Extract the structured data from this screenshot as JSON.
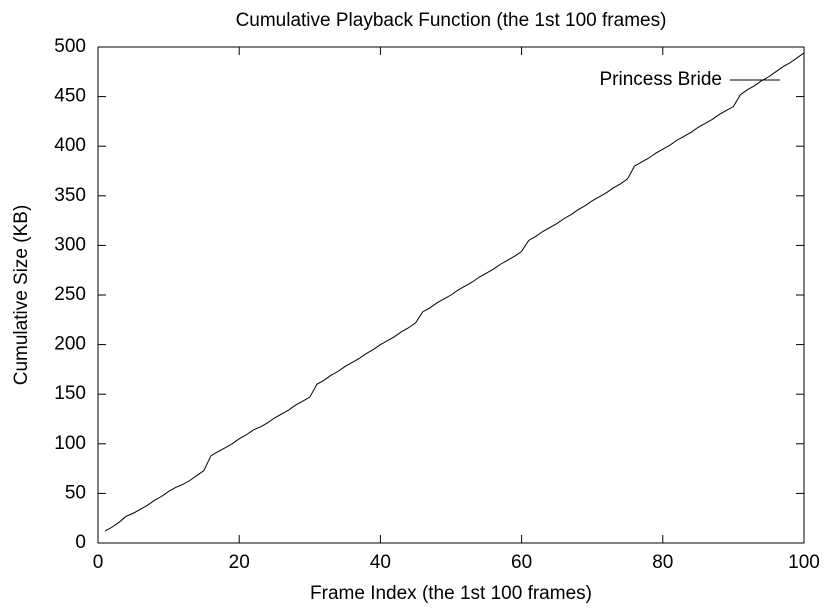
{
  "chart_data": {
    "type": "line",
    "title": "Cumulative Playback Function (the 1st 100 frames)",
    "x_label": "Frame Index (the 1st 100 frames)",
    "y_label": "Cumulative Size (KB)",
    "x": [
      1,
      2,
      3,
      4,
      5,
      6,
      7,
      8,
      9,
      10,
      11,
      12,
      13,
      14,
      15,
      16,
      17,
      18,
      19,
      20,
      21,
      22,
      23,
      24,
      25,
      26,
      27,
      28,
      29,
      30,
      31,
      32,
      33,
      34,
      35,
      36,
      37,
      38,
      39,
      40,
      41,
      42,
      43,
      44,
      45,
      46,
      47,
      48,
      49,
      50,
      51,
      52,
      53,
      54,
      55,
      56,
      57,
      58,
      59,
      60,
      61,
      62,
      63,
      64,
      65,
      66,
      67,
      68,
      69,
      70,
      71,
      72,
      73,
      74,
      75,
      76,
      77,
      78,
      79,
      80,
      81,
      82,
      83,
      84,
      85,
      86,
      87,
      88,
      89,
      90,
      91,
      92,
      93,
      94,
      95,
      96,
      97,
      98,
      99,
      100
    ],
    "series": [
      {
        "name": "Princess Bride",
        "color": "#000000",
        "values": [
          12,
          16,
          21,
          27,
          30,
          34,
          38,
          43,
          47,
          52,
          56,
          59,
          63,
          68,
          73,
          88,
          92,
          96,
          100,
          105,
          109,
          114,
          117,
          121,
          126,
          130,
          134,
          139,
          143,
          147,
          160,
          164,
          169,
          173,
          178,
          182,
          186,
          191,
          195,
          200,
          204,
          208,
          213,
          217,
          222,
          233,
          237,
          242,
          246,
          250,
          255,
          259,
          263,
          268,
          272,
          276,
          281,
          285,
          289,
          294,
          305,
          309,
          314,
          318,
          322,
          327,
          331,
          336,
          340,
          345,
          349,
          353,
          358,
          362,
          367,
          380,
          384,
          388,
          393,
          397,
          401,
          406,
          410,
          414,
          419,
          423,
          427,
          432,
          436,
          440,
          452,
          457,
          461,
          466,
          470,
          475,
          480,
          484,
          489,
          494
        ]
      }
    ],
    "xlim": [
      0,
      100
    ],
    "xticks": [
      0,
      20,
      40,
      60,
      80,
      100
    ],
    "ylim": [
      0,
      500
    ],
    "yticks": [
      0,
      50,
      100,
      150,
      200,
      250,
      300,
      350,
      400,
      450,
      500
    ],
    "grid": false,
    "legend": "top right"
  }
}
